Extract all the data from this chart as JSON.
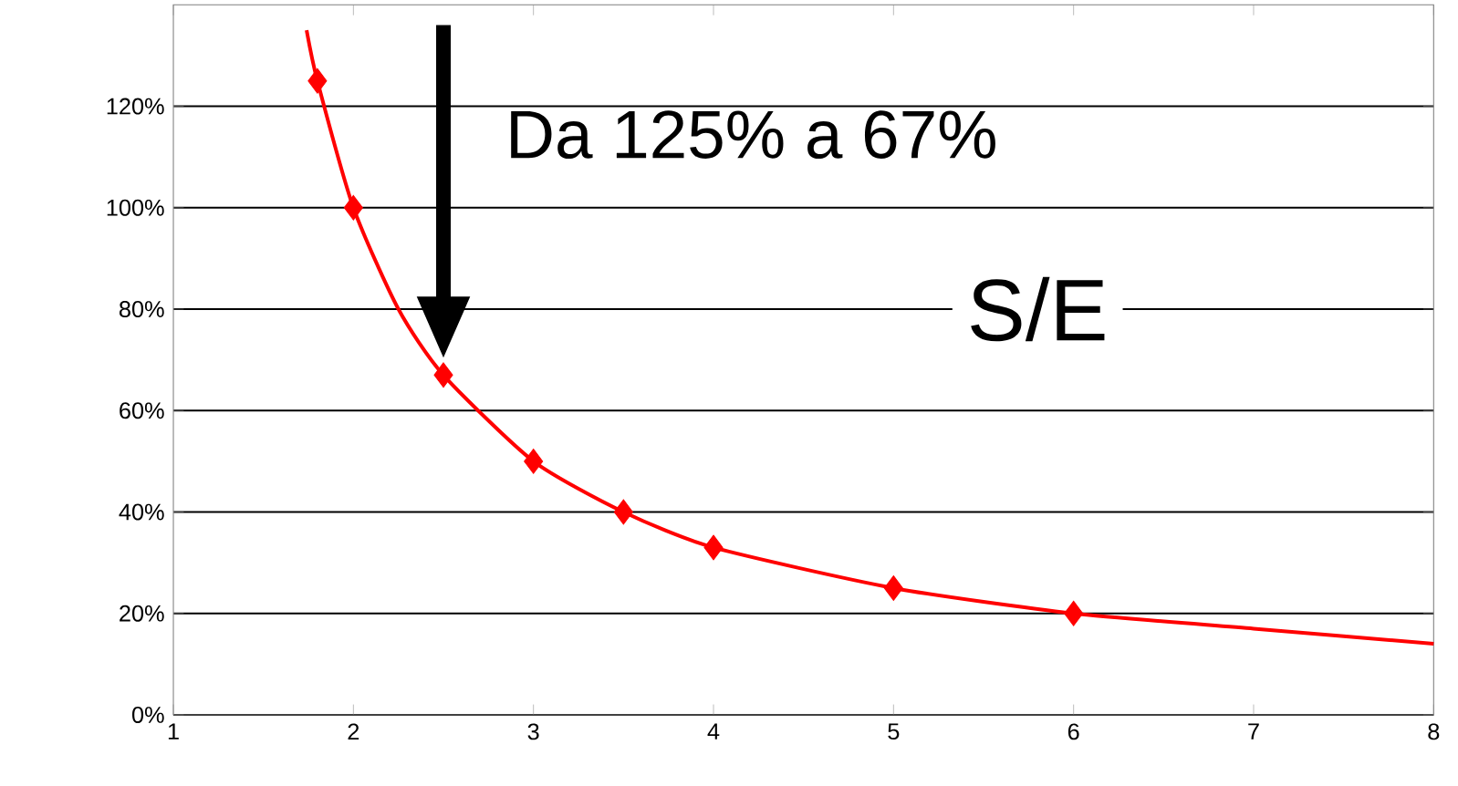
{
  "chart_data": {
    "type": "line",
    "xlim": [
      1,
      8
    ],
    "xticks": [
      1,
      2,
      3,
      4,
      5,
      6,
      7,
      8
    ],
    "ylim": [
      0,
      140
    ],
    "yticks": [
      {
        "value": 0,
        "label": "0%"
      },
      {
        "value": 20,
        "label": "20%"
      },
      {
        "value": 40,
        "label": "40%"
      },
      {
        "value": 60,
        "label": "60%"
      },
      {
        "value": 80,
        "label": "80%"
      },
      {
        "value": 100,
        "label": "100%"
      },
      {
        "value": 120,
        "label": "120%"
      }
    ],
    "grid": "y",
    "series": [
      {
        "type": "line",
        "color": "#ff0000",
        "marker": "none",
        "x": [
          1.74,
          1.8,
          2,
          2.25,
          2.5,
          3,
          3.5,
          4,
          5,
          6,
          7,
          8
        ],
        "values": [
          135,
          125,
          100,
          80,
          67,
          50,
          40,
          33,
          25,
          20,
          17,
          14
        ]
      },
      {
        "type": "scatter",
        "color": "#ff0000",
        "marker": "diamond",
        "x": [
          1.8,
          2,
          2.5,
          3,
          3.5,
          4,
          5,
          6
        ],
        "values": [
          125,
          100,
          67,
          50,
          40,
          33,
          25,
          20
        ]
      }
    ],
    "annotations": [
      "Da 125% a 67%",
      "S/E"
    ]
  }
}
